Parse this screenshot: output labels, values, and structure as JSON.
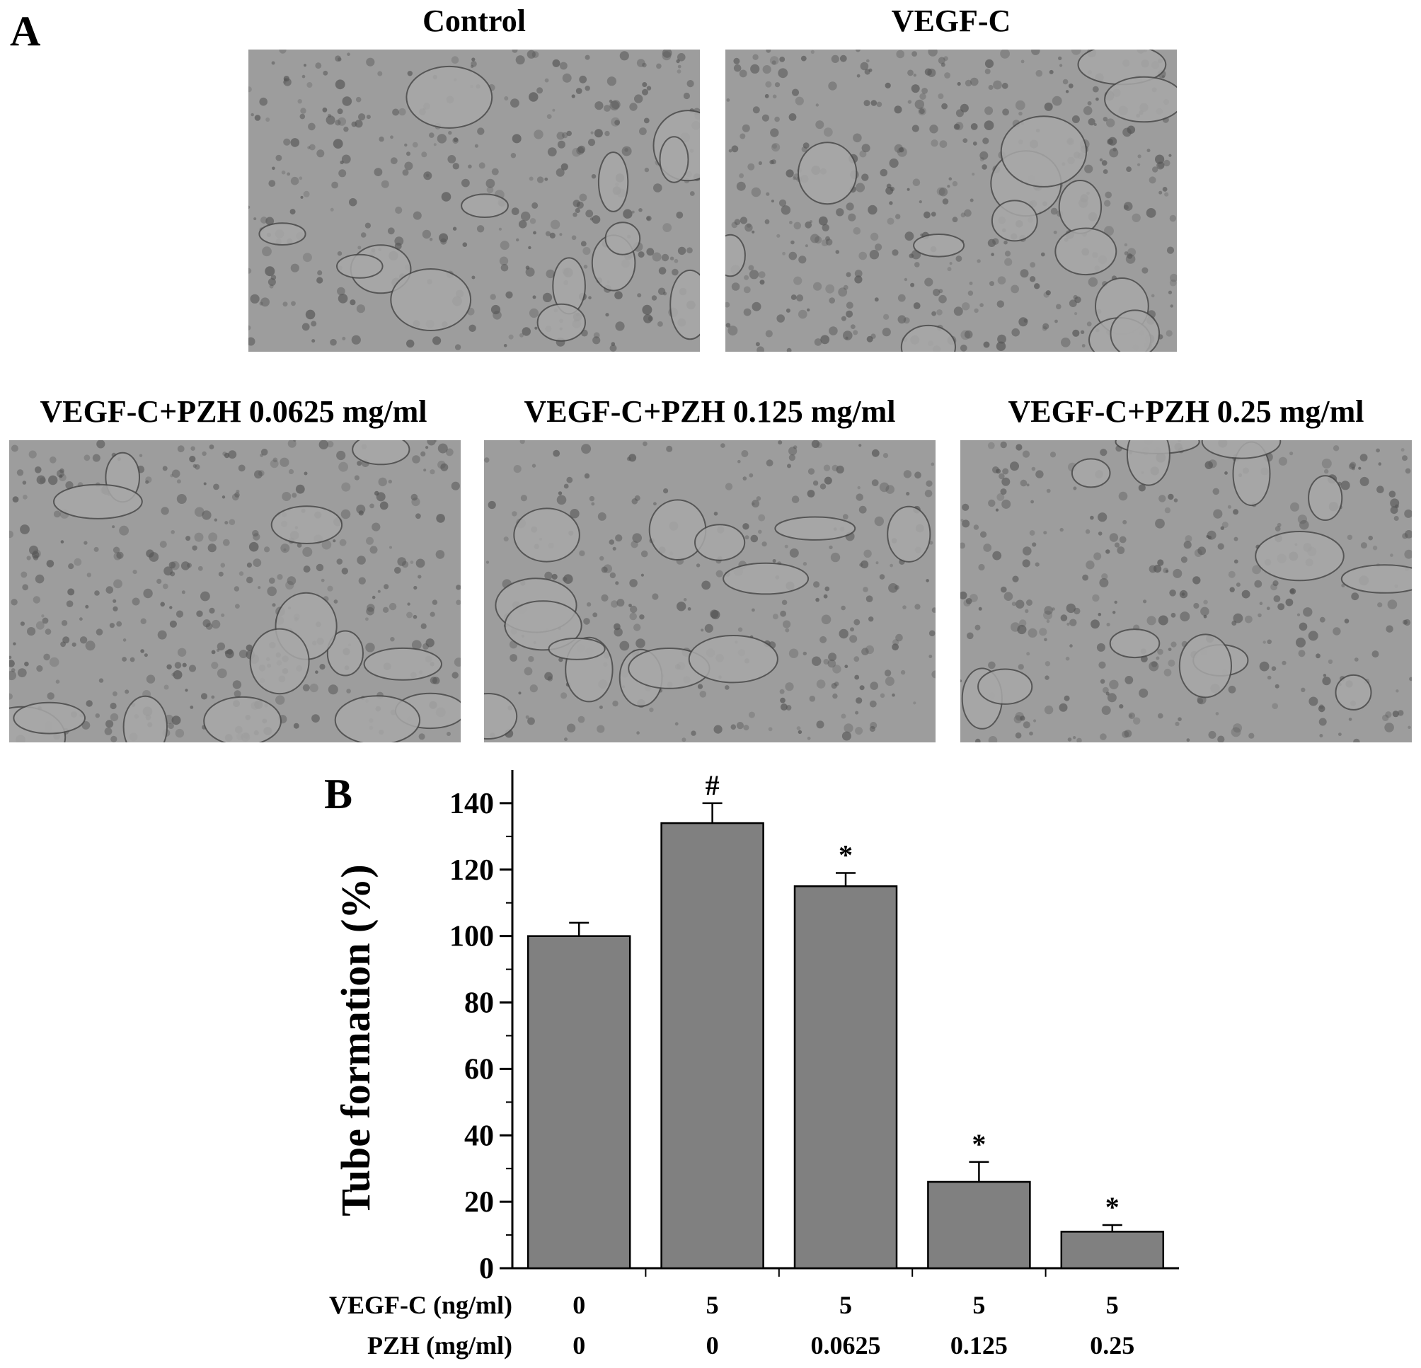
{
  "figure": {
    "panel_a_label": "A",
    "panel_b_label": "B",
    "images": [
      {
        "title": "Control"
      },
      {
        "title": "VEGF-C"
      },
      {
        "title": "VEGF-C+PZH 0.0625 mg/ml"
      },
      {
        "title": "VEGF-C+PZH 0.125 mg/ml"
      },
      {
        "title": "VEGF-C+PZH 0.25 mg/ml"
      }
    ]
  },
  "colors": {
    "bar_fill": "#808080",
    "image_base": "#9d9d9d",
    "cells": "#555555"
  },
  "chart_data": {
    "type": "bar",
    "title": "",
    "xlabel": "",
    "ylabel": "Tube formation (%)",
    "ylim": [
      0,
      150
    ],
    "yticks": [
      0,
      20,
      40,
      60,
      80,
      100,
      120,
      140
    ],
    "grid": false,
    "legend": "none",
    "values": [
      100,
      134,
      115,
      26,
      11
    ],
    "errors": [
      4,
      6,
      4,
      6,
      2
    ],
    "significance": [
      "",
      "#",
      "*",
      "*",
      "*"
    ],
    "category_rows": [
      {
        "label": "VEGF-C (ng/ml)",
        "values": [
          "0",
          "5",
          "5",
          "5",
          "5"
        ]
      },
      {
        "label": "PZH (mg/ml)",
        "values": [
          "0",
          "0",
          "0.0625",
          "0.125",
          "0.25"
        ]
      }
    ]
  }
}
